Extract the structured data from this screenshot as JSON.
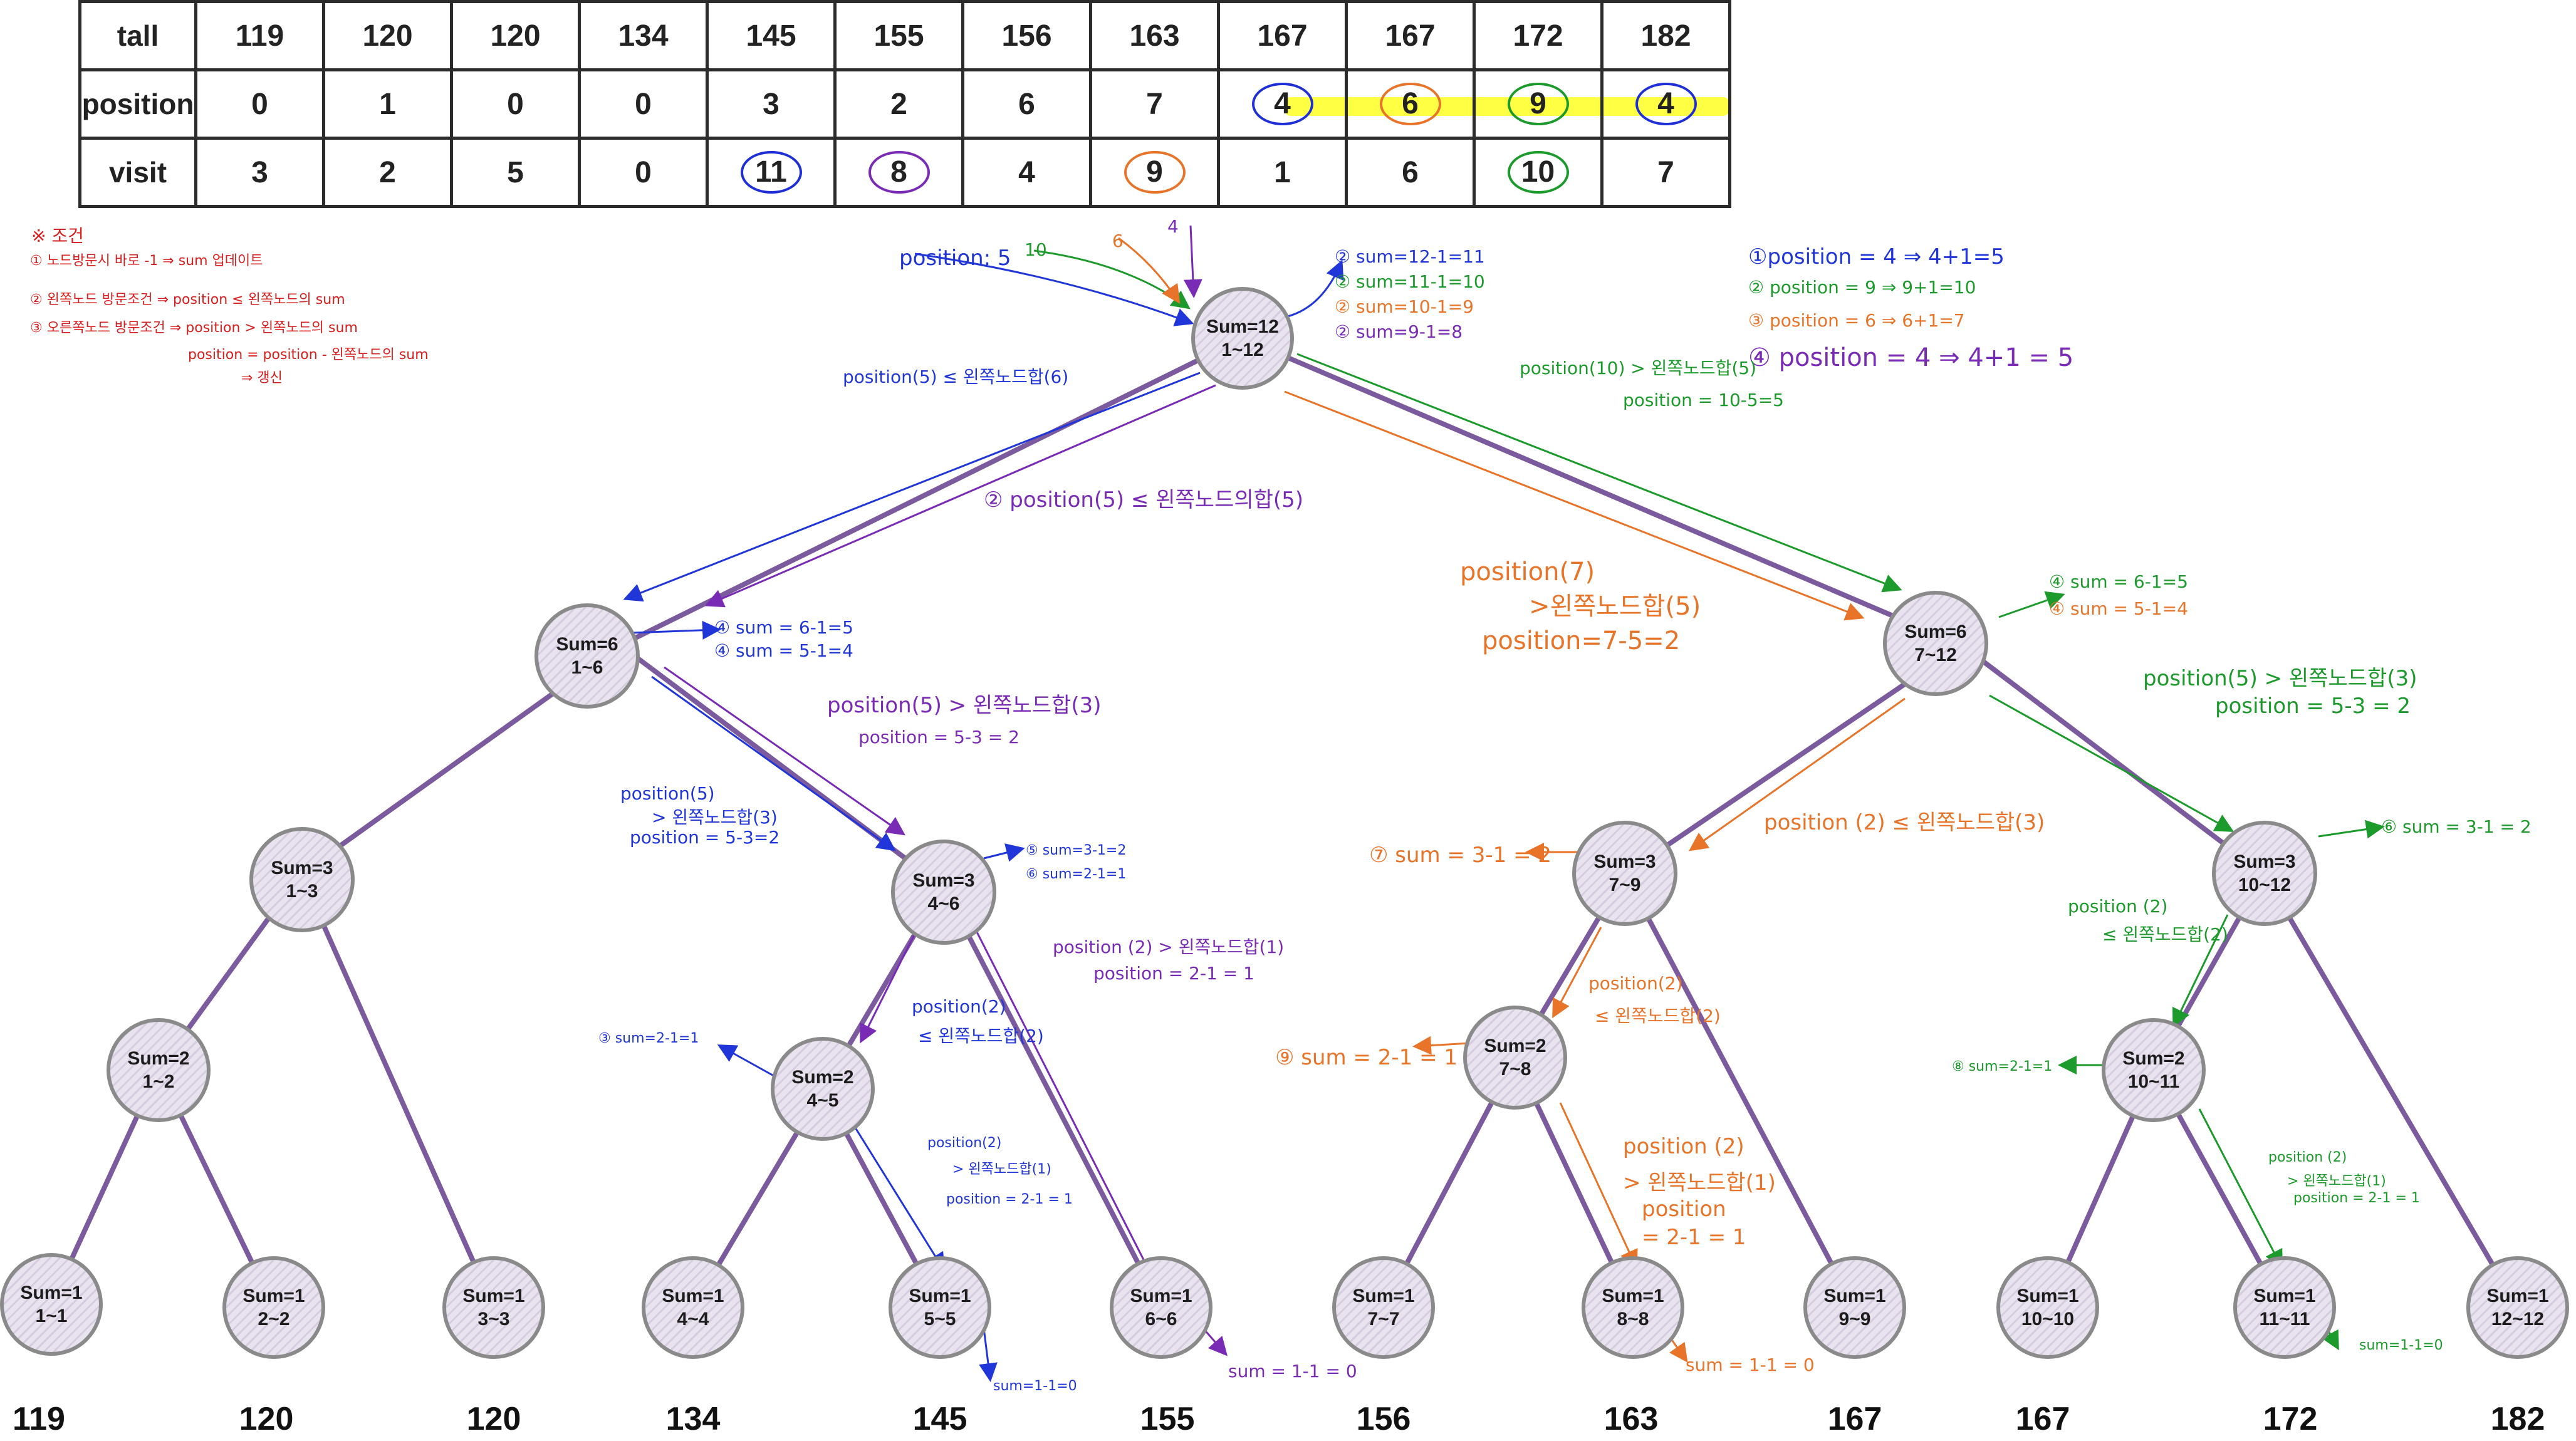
{
  "table": {
    "headers": [
      "tall",
      "position",
      "visit"
    ],
    "tall": [
      "119",
      "120",
      "120",
      "134",
      "145",
      "155",
      "156",
      "163",
      "167",
      "167",
      "172",
      "182"
    ],
    "position": [
      "0",
      "1",
      "0",
      "0",
      "3",
      "2",
      "6",
      "7",
      "4",
      "6",
      "9",
      "4"
    ],
    "visit": [
      "3",
      "2",
      "5",
      "0",
      "11",
      "8",
      "4",
      "9",
      "1",
      "6",
      "10",
      "7"
    ]
  },
  "nodes": {
    "root": {
      "sum": "Sum=12",
      "range": "1~12"
    },
    "l1a": {
      "sum": "Sum=6",
      "range": "1~6"
    },
    "l1b": {
      "sum": "Sum=6",
      "range": "7~12"
    },
    "l2a": {
      "sum": "Sum=3",
      "range": "1~3"
    },
    "l2b": {
      "sum": "Sum=3",
      "range": "4~6"
    },
    "l2c": {
      "sum": "Sum=3",
      "range": "7~9"
    },
    "l2d": {
      "sum": "Sum=3",
      "range": "10~12"
    },
    "l3a": {
      "sum": "Sum=2",
      "range": "1~2"
    },
    "l3b": {
      "sum": "Sum=2",
      "range": "4~5"
    },
    "l3c": {
      "sum": "Sum=2",
      "range": "7~8"
    },
    "l3d": {
      "sum": "Sum=2",
      "range": "10~11"
    },
    "leaf1": {
      "sum": "Sum=1",
      "range": "1~1"
    },
    "leaf2": {
      "sum": "Sum=1",
      "range": "2~2"
    },
    "leaf3": {
      "sum": "Sum=1",
      "range": "3~3"
    },
    "leaf4": {
      "sum": "Sum=1",
      "range": "4~4"
    },
    "leaf5": {
      "sum": "Sum=1",
      "range": "5~5"
    },
    "leaf6": {
      "sum": "Sum=1",
      "range": "6~6"
    },
    "leaf7": {
      "sum": "Sum=1",
      "range": "7~7"
    },
    "leaf8": {
      "sum": "Sum=1",
      "range": "8~8"
    },
    "leaf9": {
      "sum": "Sum=1",
      "range": "9~9"
    },
    "leaf10": {
      "sum": "Sum=1",
      "range": "10~10"
    },
    "leaf11": {
      "sum": "Sum=1",
      "range": "11~11"
    },
    "leaf12": {
      "sum": "Sum=1",
      "range": "12~12"
    }
  },
  "leaf_values": [
    "119",
    "120",
    "120",
    "134",
    "145",
    "155",
    "156",
    "163",
    "167",
    "167",
    "172",
    "182"
  ],
  "notes": {
    "n0": "※ 조건",
    "n1": "① 노드방문시 바로 -1 ⇒ sum 업데이트",
    "n2": "② 왼쪽노드 방문조건 ⇒ position ≤ 왼쪽노드의 sum",
    "n3": "③ 오른쪽노드 방문조건 ⇒ position > 왼쪽노드의 sum",
    "n4": "position = position - 왼쪽노드의 sum",
    "n5": "⇒ 갱신"
  },
  "annotations": {
    "root_pos5": "position: 5",
    "root_10": "10",
    "root_6": "6",
    "root_4": "4",
    "root_s1": "② sum=12-1=11",
    "root_s2": "② sum=11-1=10",
    "root_s3": "② sum=10-1=9",
    "root_s4": "② sum=9-1=8",
    "tr1": "①position = 4 ⇒ 4+1=5",
    "tr2": "② position = 9 ⇒ 9+1=10",
    "tr3": "③ position = 6 ⇒ 6+1=7",
    "tr4": "④ position = 4 ⇒ 4+1 = 5",
    "g_cmp1": "position(10) > 왼쪽노드합(5)",
    "g_cmp2": "position = 10-5=5",
    "b_left1": "position(5) ≤ 왼쪽노드합(6)",
    "p_left1": "② position(5) ≤ 왼쪽노드의합(5)",
    "o_right1": "position(7)",
    "o_right2": ">왼쪽노드합(5)",
    "o_right3": "position=7-5=2",
    "l1a_s1": "④ sum = 6-1=5",
    "l1a_s2": "④ sum = 5-1=4",
    "l1b_s1": "④ sum = 6-1=5",
    "l1b_s2": "④ sum = 5-1=4",
    "p_mid1": "position(5) > 왼쪽노드합(3)",
    "p_mid2": "position = 5-3 = 2",
    "b_mid1": "position(5)",
    "b_mid2": "> 왼쪽노드합(3)",
    "b_mid3": "position = 5-3=2",
    "g_r1": "position(5) > 왼쪽노드합(3)",
    "g_r2": "position = 5-3 = 2",
    "o_l2c": "position (2) ≤ 왼쪽노드합(3)",
    "l2c_sum": "⑦ sum = 3-1 = 2",
    "l2b_sum1": "⑤ sum=3-1=2",
    "l2b_sum2": "⑥ sum=2-1=1",
    "l2d_sum": "⑥ sum = 3-1 = 2",
    "p_l2b1": "position (2) > 왼쪽노드합(1)",
    "p_l2b2": "position = 2-1 = 1",
    "b_l3b1": "position(2)",
    "b_l3b2": "≤ 왼쪽노드합(2)",
    "l3b_sum": "③ sum=2-1=1",
    "o_l3c1": "position(2)",
    "o_l3c2": "≤ 왼쪽노드합(2)",
    "l3c_sum": "⑨ sum = 2-1 = 1",
    "g_l3d1": "position (2)",
    "g_l3d2": "≤ 왼쪽노드합(2)",
    "l3d_sum": "⑧ sum=2-1=1",
    "b_l5a": "position(2)",
    "b_l5b": "> 왼쪽노드합(1)",
    "b_l5c": "position = 2-1 = 1",
    "o_l8a": "position (2)",
    "o_l8b": "> 왼쪽노드합(1)",
    "o_l8c": "position",
    "o_l8d": "= 2-1 = 1",
    "g_l11a": "position (2)",
    "g_l11b": "> 왼쪽노드합(1)",
    "g_l11c": "position = 2-1 = 1",
    "leaf5_sum": "sum=1-1=0",
    "leaf6_sum": "sum = 1-1 = 0",
    "leaf8_sum": "sum = 1-1 = 0",
    "leaf11_sum": "sum=1-1=0"
  },
  "colors": {
    "tree_edge": "#7b5a9e",
    "blue": "#2136d8",
    "green": "#1c9a2c",
    "orange": "#e8742a",
    "purple": "#7a2bb5",
    "red": "#d62020"
  }
}
